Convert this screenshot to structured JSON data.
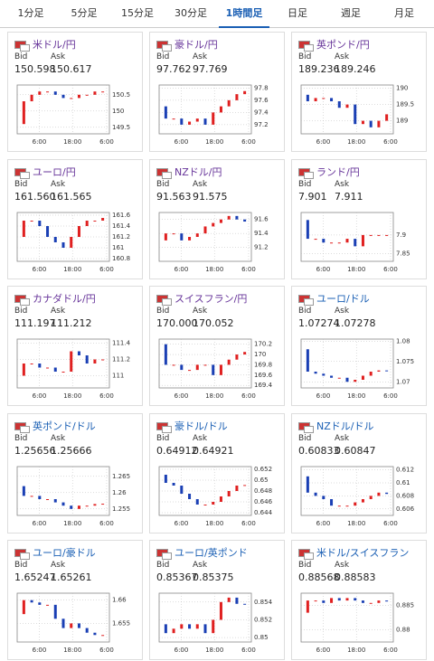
{
  "tabs": [
    "1分足",
    "5分足",
    "15分足",
    "30分足",
    "1時間足",
    "日足",
    "週足",
    "月足"
  ],
  "labels": {
    "bid": "Bid",
    "ask": "Ask"
  },
  "x_ticks": [
    "6:00",
    "18:00",
    "6:00"
  ],
  "cards": [
    {
      "pair": "米ドル/円",
      "bid": "150.598",
      "ask": "150.617",
      "ylim": [
        149.3,
        150.8
      ],
      "yticks": [
        149.5,
        150,
        150.5
      ],
      "values": [
        149.6,
        150.3,
        150.5,
        150.6,
        150.6,
        150.5,
        150.4,
        150.4,
        150.5,
        150.5,
        150.6,
        150.6
      ]
    },
    {
      "pair": "豪ドル/円",
      "bid": "97.762",
      "ask": "97.769",
      "ylim": [
        97.05,
        97.85
      ],
      "yticks": [
        97.2,
        97.4,
        97.6,
        97.8
      ],
      "values": [
        97.5,
        97.3,
        97.3,
        97.2,
        97.25,
        97.3,
        97.2,
        97.4,
        97.5,
        97.6,
        97.7,
        97.75
      ]
    },
    {
      "pair": "英ポンド/円",
      "bid": "189.236",
      "ask": "189.246",
      "ylim": [
        188.6,
        190.1
      ],
      "yticks": [
        189,
        189.5,
        190
      ],
      "values": [
        189.8,
        189.6,
        189.7,
        189.7,
        189.6,
        189.4,
        189.5,
        188.9,
        189.0,
        188.8,
        189.0,
        189.2
      ]
    },
    {
      "pair": "ユーロ/円",
      "bid": "161.560",
      "ask": "161.565",
      "ylim": [
        160.75,
        161.65
      ],
      "yticks": [
        160.8,
        161,
        161.2,
        161.4,
        161.6
      ],
      "values": [
        161.2,
        161.5,
        161.5,
        161.4,
        161.2,
        161.1,
        161.0,
        161.2,
        161.4,
        161.5,
        161.5,
        161.55
      ]
    },
    {
      "pair": "NZドル/円",
      "bid": "91.563",
      "ask": "91.575",
      "ylim": [
        91.0,
        91.7
      ],
      "yticks": [
        91.2,
        91.4,
        91.6
      ],
      "values": [
        91.3,
        91.4,
        91.4,
        91.3,
        91.35,
        91.4,
        91.5,
        91.55,
        91.6,
        91.65,
        91.6,
        91.57
      ]
    },
    {
      "pair": "ランド/円",
      "bid": "7.901",
      "ask": "7.911",
      "ylim": [
        7.83,
        7.96
      ],
      "yticks": [
        7.85,
        7.9
      ],
      "values": [
        7.94,
        7.89,
        7.89,
        7.88,
        7.88,
        7.88,
        7.89,
        7.87,
        7.9,
        7.9,
        7.9,
        7.9
      ]
    },
    {
      "pair": "カナダドル/円",
      "bid": "111.197",
      "ask": "111.212",
      "ylim": [
        110.85,
        111.45
      ],
      "yticks": [
        111,
        111.2,
        111.4
      ],
      "values": [
        111.0,
        111.15,
        111.15,
        111.1,
        111.1,
        111.05,
        111.05,
        111.3,
        111.25,
        111.15,
        111.2,
        111.2
      ]
    },
    {
      "pair": "スイスフラン/円",
      "bid": "170.000",
      "ask": "170.052",
      "ylim": [
        169.35,
        170.3
      ],
      "yticks": [
        169.4,
        169.6,
        169.8,
        170,
        170.2
      ],
      "values": [
        170.2,
        169.8,
        169.8,
        169.7,
        169.7,
        169.8,
        169.8,
        169.6,
        169.8,
        169.9,
        170.0,
        170.05
      ]
    },
    {
      "pair": "ユーロ/ドル",
      "bid": "1.07274",
      "ask": "1.07278",
      "ylim": [
        1.0685,
        1.0805
      ],
      "yticks": [
        1.07,
        1.075,
        1.08
      ],
      "values": [
        1.078,
        1.0725,
        1.072,
        1.0715,
        1.071,
        1.071,
        1.07,
        1.0705,
        1.0715,
        1.0725,
        1.0728,
        1.0727
      ]
    },
    {
      "pair": "英ポンド/ドル",
      "bid": "1.25656",
      "ask": "1.25666",
      "ylim": [
        1.253,
        1.268
      ],
      "yticks": [
        1.255,
        1.26,
        1.265
      ],
      "values": [
        1.262,
        1.259,
        1.259,
        1.258,
        1.258,
        1.257,
        1.256,
        1.255,
        1.256,
        1.256,
        1.2565,
        1.2566
      ]
    },
    {
      "pair": "豪ドル/ドル",
      "bid": "0.64912",
      "ask": "0.64921",
      "ylim": [
        0.6435,
        0.6525
      ],
      "yticks": [
        0.644,
        0.646,
        0.648,
        0.65,
        0.652
      ],
      "values": [
        0.651,
        0.6495,
        0.649,
        0.6475,
        0.6465,
        0.6455,
        0.6455,
        0.646,
        0.647,
        0.648,
        0.649,
        0.6491
      ]
    },
    {
      "pair": "NZドル/ドル",
      "bid": "0.60833",
      "ask": "0.60847",
      "ylim": [
        0.605,
        0.6125
      ],
      "yticks": [
        0.606,
        0.608,
        0.61,
        0.612
      ],
      "values": [
        0.611,
        0.6085,
        0.608,
        0.6075,
        0.6065,
        0.6065,
        0.6065,
        0.607,
        0.6075,
        0.608,
        0.6085,
        0.6083
      ]
    },
    {
      "pair": "ユーロ/豪ドル",
      "bid": "1.65247",
      "ask": "1.65261",
      "ylim": [
        1.651,
        1.6615
      ],
      "yticks": [
        1.655,
        1.66
      ],
      "values": [
        1.657,
        1.66,
        1.6595,
        1.659,
        1.659,
        1.656,
        1.654,
        1.655,
        1.654,
        1.653,
        1.6525,
        1.6525
      ]
    },
    {
      "pair": "ユーロ/英ポンド",
      "bid": "0.85367",
      "ask": "0.85375",
      "ylim": [
        0.8495,
        0.855
      ],
      "yticks": [
        0.85,
        0.852,
        0.854
      ],
      "values": [
        0.8515,
        0.8505,
        0.851,
        0.8515,
        0.851,
        0.8515,
        0.8505,
        0.852,
        0.854,
        0.8545,
        0.8538,
        0.8537
      ]
    },
    {
      "pair": "米ドル/スイスフラン",
      "bid": "0.88568",
      "ask": "0.88583",
      "ylim": [
        0.8775,
        0.8875
      ],
      "yticks": [
        0.88,
        0.885
      ],
      "values": [
        0.8835,
        0.886,
        0.886,
        0.8855,
        0.8865,
        0.886,
        0.8865,
        0.886,
        0.8855,
        0.8855,
        0.886,
        0.8858
      ]
    }
  ]
}
